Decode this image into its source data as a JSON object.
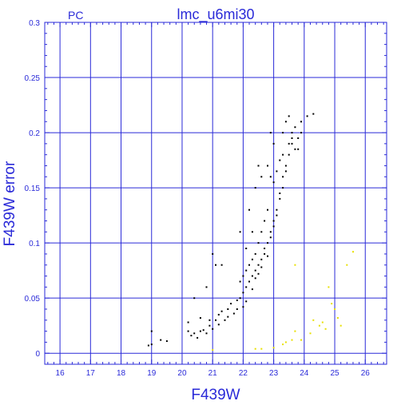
{
  "chart_data": {
    "type": "scatter",
    "title": "lmc_u6mi30",
    "corner_label": "PC",
    "xlabel": "F439W",
    "ylabel": "F439W error",
    "xlim": [
      15.5,
      26.7
    ],
    "ylim": [
      -0.01,
      0.3
    ],
    "xticks": [
      "16",
      "17",
      "18",
      "19",
      "20",
      "21",
      "22",
      "23",
      "24",
      "25",
      "26"
    ],
    "yticks": [
      "0",
      "0.05",
      "0.1",
      "0.15",
      "0.2",
      "0.25",
      "0.3"
    ],
    "grid": true,
    "colors": {
      "axis": "#2a2ad8",
      "series_main": "#000000",
      "series_faint": "#e8e000"
    },
    "series": [
      {
        "color": "#000000",
        "points": [
          [
            18.9,
            0.007
          ],
          [
            19.0,
            0.008
          ],
          [
            19.0,
            0.02
          ],
          [
            19.3,
            0.012
          ],
          [
            19.5,
            0.011
          ],
          [
            20.2,
            0.02
          ],
          [
            20.2,
            0.028
          ],
          [
            20.3,
            0.016
          ],
          [
            20.4,
            0.018
          ],
          [
            20.5,
            0.014
          ],
          [
            20.6,
            0.02
          ],
          [
            20.6,
            0.032
          ],
          [
            20.7,
            0.021
          ],
          [
            20.8,
            0.018
          ],
          [
            20.9,
            0.025
          ],
          [
            20.9,
            0.03
          ],
          [
            21.0,
            0.022
          ],
          [
            21.1,
            0.03
          ],
          [
            21.2,
            0.035
          ],
          [
            21.2,
            0.026
          ],
          [
            21.3,
            0.038
          ],
          [
            21.4,
            0.03
          ],
          [
            21.5,
            0.04
          ],
          [
            21.5,
            0.033
          ],
          [
            21.6,
            0.045
          ],
          [
            21.7,
            0.036
          ],
          [
            21.8,
            0.048
          ],
          [
            21.8,
            0.04
          ],
          [
            21.9,
            0.05
          ],
          [
            22.0,
            0.042
          ],
          [
            22.0,
            0.055
          ],
          [
            22.1,
            0.06
          ],
          [
            22.1,
            0.047
          ],
          [
            22.2,
            0.065
          ],
          [
            22.3,
            0.058
          ],
          [
            22.3,
            0.07
          ],
          [
            22.4,
            0.068
          ],
          [
            22.4,
            0.075
          ],
          [
            22.5,
            0.072
          ],
          [
            22.5,
            0.08
          ],
          [
            22.6,
            0.085
          ],
          [
            22.6,
            0.078
          ],
          [
            22.7,
            0.09
          ],
          [
            22.7,
            0.095
          ],
          [
            22.8,
            0.1
          ],
          [
            22.8,
            0.088
          ],
          [
            22.9,
            0.105
          ],
          [
            22.9,
            0.11
          ],
          [
            23.0,
            0.115
          ],
          [
            23.0,
            0.12
          ],
          [
            23.1,
            0.125
          ],
          [
            23.1,
            0.13
          ],
          [
            23.2,
            0.14
          ],
          [
            23.2,
            0.145
          ],
          [
            23.3,
            0.15
          ],
          [
            23.3,
            0.16
          ],
          [
            23.4,
            0.165
          ],
          [
            23.4,
            0.17
          ],
          [
            23.5,
            0.18
          ],
          [
            23.5,
            0.19
          ],
          [
            23.6,
            0.195
          ],
          [
            23.6,
            0.2
          ],
          [
            23.7,
            0.205
          ],
          [
            23.8,
            0.185
          ],
          [
            23.9,
            0.21
          ],
          [
            24.1,
            0.215
          ],
          [
            24.3,
            0.217
          ],
          [
            22.8,
            0.17
          ],
          [
            22.9,
            0.16
          ],
          [
            23.0,
            0.155
          ],
          [
            23.1,
            0.165
          ],
          [
            23.2,
            0.175
          ],
          [
            23.3,
            0.18
          ],
          [
            23.3,
            0.2
          ],
          [
            23.4,
            0.21
          ],
          [
            23.5,
            0.215
          ],
          [
            23.6,
            0.19
          ],
          [
            23.7,
            0.185
          ],
          [
            23.8,
            0.195
          ],
          [
            23.9,
            0.2
          ],
          [
            23.0,
            0.19
          ],
          [
            22.9,
            0.2
          ],
          [
            22.5,
            0.17
          ],
          [
            22.6,
            0.16
          ],
          [
            22.4,
            0.15
          ],
          [
            22.3,
            0.11
          ],
          [
            22.2,
            0.13
          ],
          [
            22.6,
            0.11
          ],
          [
            22.7,
            0.12
          ],
          [
            22.8,
            0.13
          ],
          [
            22.5,
            0.1
          ],
          [
            22.4,
            0.09
          ],
          [
            22.3,
            0.085
          ],
          [
            22.2,
            0.08
          ],
          [
            22.1,
            0.075
          ],
          [
            22.0,
            0.07
          ],
          [
            21.9,
            0.065
          ],
          [
            21.3,
            0.08
          ],
          [
            21.1,
            0.08
          ],
          [
            21.0,
            0.09
          ],
          [
            20.8,
            0.06
          ],
          [
            20.4,
            0.05
          ],
          [
            21.9,
            0.11
          ],
          [
            22.1,
            0.095
          ]
        ]
      },
      {
        "color": "#e8e000",
        "points": [
          [
            21.0,
            0.003
          ],
          [
            22.4,
            0.004
          ],
          [
            22.6,
            0.004
          ],
          [
            23.0,
            0.005
          ],
          [
            23.3,
            0.008
          ],
          [
            23.4,
            0.01
          ],
          [
            23.6,
            0.012
          ],
          [
            23.7,
            0.02
          ],
          [
            23.9,
            0.012
          ],
          [
            24.2,
            0.018
          ],
          [
            24.3,
            0.03
          ],
          [
            24.5,
            0.025
          ],
          [
            24.6,
            0.028
          ],
          [
            24.7,
            0.022
          ],
          [
            24.9,
            0.045
          ],
          [
            25.0,
            0.04
          ],
          [
            25.1,
            0.032
          ],
          [
            25.2,
            0.025
          ],
          [
            25.4,
            0.08
          ],
          [
            25.6,
            0.092
          ],
          [
            24.8,
            0.06
          ],
          [
            23.7,
            0.08
          ]
        ]
      }
    ]
  }
}
